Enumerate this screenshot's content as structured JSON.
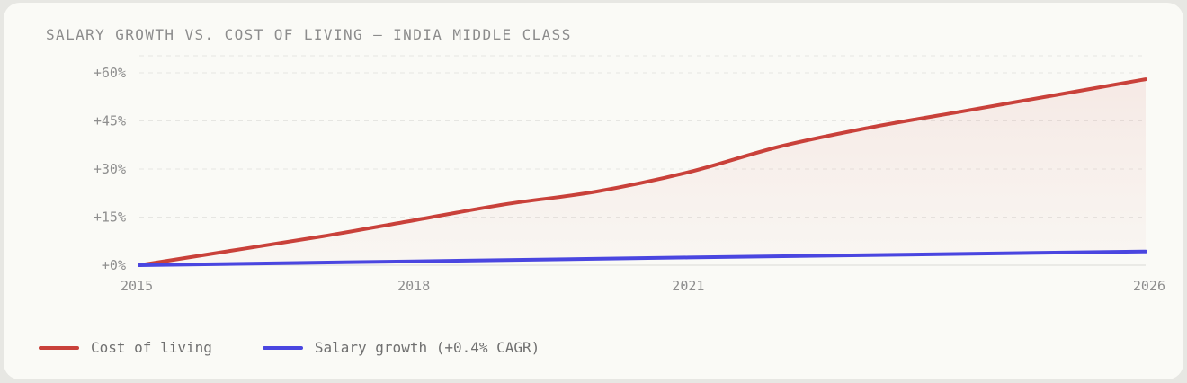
{
  "chart_data": {
    "type": "line",
    "title": "SALARY GROWTH VS. COST OF LIVING — INDIA MIDDLE CLASS",
    "xlabel": "",
    "ylabel": "",
    "x_ticks": [
      "2015",
      "2018",
      "2021",
      "2026"
    ],
    "y_ticks": [
      "+0%",
      "+15%",
      "+30%",
      "+45%",
      "+60%"
    ],
    "xlim": [
      2015,
      2026
    ],
    "ylim": [
      0,
      60
    ],
    "grid": true,
    "legend_position": "bottom-left",
    "series": [
      {
        "name": "Cost of living",
        "color": "#c9413a",
        "fill": true,
        "points": [
          [
            2015,
            0
          ],
          [
            2016,
            4.5
          ],
          [
            2017,
            9
          ],
          [
            2018,
            14
          ],
          [
            2019,
            19
          ],
          [
            2020,
            23
          ],
          [
            2021,
            29
          ],
          [
            2022,
            37
          ],
          [
            2023,
            43
          ],
          [
            2024,
            48
          ],
          [
            2025,
            53
          ],
          [
            2026,
            58
          ]
        ]
      },
      {
        "name": "Salary growth (+0.4% CAGR)",
        "color": "#4a46e0",
        "fill": false,
        "points": [
          [
            2015,
            0
          ],
          [
            2018,
            1.2
          ],
          [
            2021,
            2.4
          ],
          [
            2026,
            4.3
          ]
        ]
      }
    ]
  }
}
